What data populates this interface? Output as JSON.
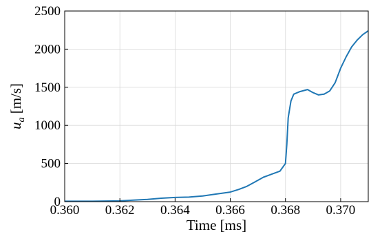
{
  "chart_data": {
    "type": "line",
    "xlabel": "Time [ms]",
    "ylabel_symbol": "u",
    "ylabel_subscript": "a",
    "ylabel_unit": " [m/s]",
    "xlim": [
      0.36,
      0.371
    ],
    "ylim": [
      0,
      2500
    ],
    "x_ticks": [
      "0.360",
      "0.362",
      "0.364",
      "0.366",
      "0.368",
      "0.370"
    ],
    "y_ticks": [
      "0",
      "500",
      "1000",
      "1500",
      "2000",
      "2500"
    ],
    "grid": true,
    "series": [
      {
        "color": "#1f77b4",
        "x": [
          0.36,
          0.361,
          0.362,
          0.3625,
          0.363,
          0.3635,
          0.364,
          0.3645,
          0.365,
          0.3655,
          0.366,
          0.3663,
          0.3666,
          0.3669,
          0.3672,
          0.3675,
          0.3678,
          0.368,
          0.36805,
          0.3681,
          0.3682,
          0.3683,
          0.3685,
          0.3688,
          0.369,
          0.3692,
          0.3694,
          0.3696,
          0.3698,
          0.37,
          0.3702,
          0.3704,
          0.3706,
          0.3708,
          0.371
        ],
        "y": [
          5,
          5,
          10,
          20,
          30,
          45,
          55,
          60,
          75,
          100,
          125,
          160,
          200,
          260,
          320,
          360,
          400,
          500,
          750,
          1100,
          1320,
          1410,
          1440,
          1470,
          1430,
          1400,
          1410,
          1450,
          1560,
          1750,
          1900,
          2030,
          2120,
          2190,
          2240
        ]
      }
    ]
  }
}
